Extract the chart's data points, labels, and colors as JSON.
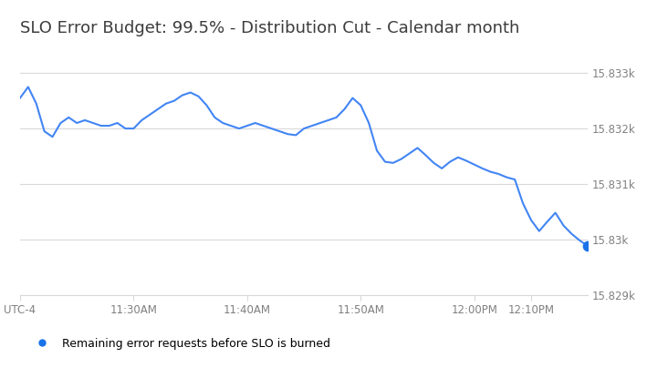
{
  "title": "SLO Error Budget: 99.5% - Distribution Cut - Calendar month",
  "legend_label": "Remaining error requests before SLO is burned",
  "line_color": "#4285f4",
  "dot_color": "#1a73e8",
  "background_color": "#ffffff",
  "grid_color": "#d9d9d9",
  "title_fontsize": 13,
  "tick_label_color": "#808080",
  "ylim_min": 15829.0,
  "ylim_max": 15833.5,
  "yticks": [
    15829,
    15830,
    15831,
    15832,
    15833
  ],
  "ytick_labels": [
    "15.829k",
    "15.83k",
    "15.831k",
    "15.832k",
    "15.833k"
  ],
  "x_values": [
    0,
    1,
    2,
    3,
    4,
    5,
    6,
    7,
    8,
    9,
    10,
    11,
    12,
    13,
    14,
    15,
    16,
    17,
    18,
    19,
    20,
    21,
    22,
    23,
    24,
    25,
    26,
    27,
    28,
    29,
    30,
    31,
    32,
    33,
    34,
    35,
    36,
    37,
    38,
    39,
    40,
    41,
    42,
    43,
    44,
    45,
    46,
    47,
    48,
    49,
    50,
    51,
    52,
    53,
    54,
    55,
    56,
    57,
    58,
    59,
    60,
    61,
    62,
    63,
    64,
    65,
    66,
    67,
    68,
    69,
    70
  ],
  "y_values": [
    15832.55,
    15832.75,
    15832.45,
    15831.95,
    15831.85,
    15832.1,
    15832.2,
    15832.1,
    15832.15,
    15832.1,
    15832.05,
    15832.05,
    15832.1,
    15832.0,
    15832.0,
    15832.15,
    15832.25,
    15832.35,
    15832.45,
    15832.5,
    15832.6,
    15832.65,
    15832.58,
    15832.42,
    15832.2,
    15832.1,
    15832.05,
    15832.0,
    15832.05,
    15832.1,
    15832.05,
    15832.0,
    15831.95,
    15831.9,
    15831.88,
    15832.0,
    15832.05,
    15832.1,
    15832.15,
    15832.2,
    15832.35,
    15832.55,
    15832.42,
    15832.1,
    15831.6,
    15831.4,
    15831.38,
    15831.45,
    15831.55,
    15831.65,
    15831.52,
    15831.38,
    15831.28,
    15831.4,
    15831.48,
    15831.42,
    15831.35,
    15831.28,
    15831.22,
    15831.18,
    15831.12,
    15831.08,
    15830.65,
    15830.35,
    15830.15,
    15830.32,
    15830.48,
    15830.25,
    15830.1,
    15829.98,
    15829.88
  ],
  "xtick_positions": [
    0,
    14,
    28,
    42,
    56,
    63
  ],
  "xtick_labels": [
    "UTC-4",
    "11:30AM",
    "11:40AM",
    "11:50AM",
    "12:00PM",
    "12:10PM"
  ]
}
